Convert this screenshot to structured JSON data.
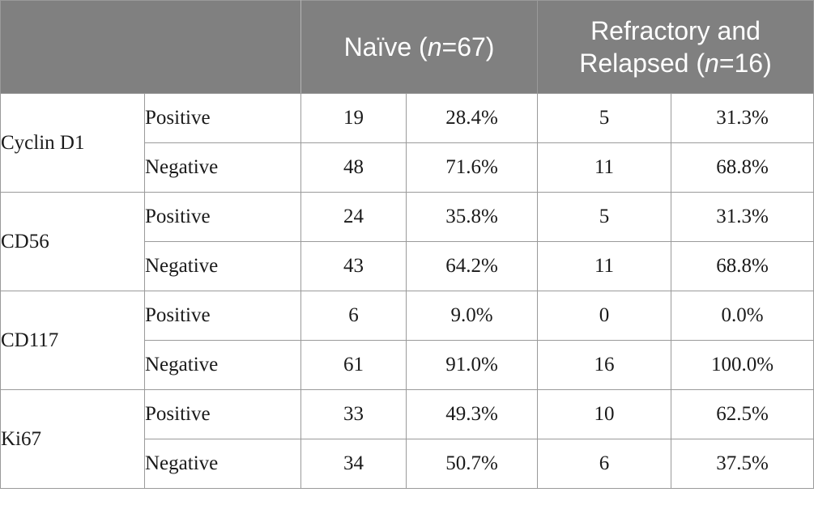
{
  "header": {
    "group1": {
      "label_prefix": "Naïve (",
      "n_symbol": "n",
      "label_suffix": "=67)"
    },
    "group2": {
      "line1": "Refractory and",
      "line2_prefix": "Relapsed (",
      "n_symbol": "n",
      "line2_suffix": "=16)"
    }
  },
  "rows": [
    {
      "marker": "Cyclin D1",
      "positive": {
        "label": "Positive",
        "naive_n": "19",
        "naive_pct": "28.4%",
        "rr_n": "5",
        "rr_pct": "31.3%"
      },
      "negative": {
        "label": "Negative",
        "naive_n": "48",
        "naive_pct": "71.6%",
        "rr_n": "11",
        "rr_pct": "68.8%"
      }
    },
    {
      "marker": "CD56",
      "positive": {
        "label": "Positive",
        "naive_n": "24",
        "naive_pct": "35.8%",
        "rr_n": "5",
        "rr_pct": "31.3%"
      },
      "negative": {
        "label": "Negative",
        "naive_n": "43",
        "naive_pct": "64.2%",
        "rr_n": "11",
        "rr_pct": "68.8%"
      }
    },
    {
      "marker": "CD117",
      "positive": {
        "label": "Positive",
        "naive_n": "6",
        "naive_pct": "9.0%",
        "rr_n": "0",
        "rr_pct": "0.0%"
      },
      "negative": {
        "label": "Negative",
        "naive_n": "61",
        "naive_pct": "91.0%",
        "rr_n": "16",
        "rr_pct": "100.0%"
      }
    },
    {
      "marker": "Ki67",
      "positive": {
        "label": "Positive",
        "naive_n": "33",
        "naive_pct": "49.3%",
        "rr_n": "10",
        "rr_pct": "62.5%"
      },
      "negative": {
        "label": "Negative",
        "naive_n": "34",
        "naive_pct": "50.7%",
        "rr_n": "6",
        "rr_pct": "37.5%"
      }
    }
  ]
}
